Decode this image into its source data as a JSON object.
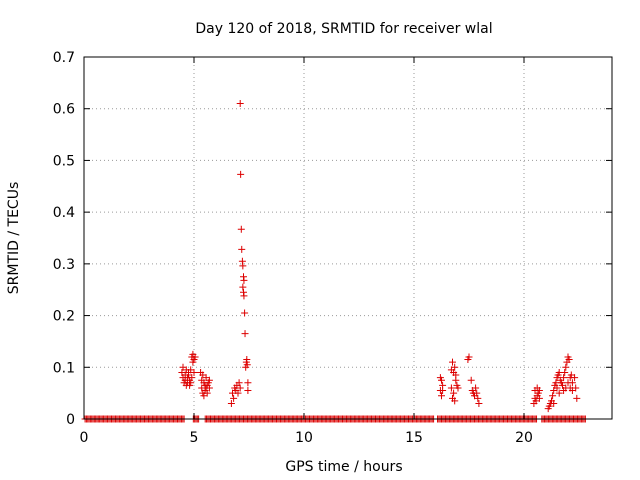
{
  "chart_data": {
    "type": "scatter",
    "title": "Day 120 of 2018, SRMTID for receiver wlal",
    "xlabel": "GPS time / hours",
    "ylabel": "SRMTID / TECUs",
    "xlim": [
      0,
      24
    ],
    "ylim": [
      0,
      0.7
    ],
    "x_ticks": [
      0,
      5,
      10,
      15,
      20
    ],
    "x_tick_labels": [
      "0",
      "5",
      "10",
      "15",
      "20"
    ],
    "y_ticks": [
      0,
      0.1,
      0.2,
      0.3,
      0.4,
      0.5,
      0.6,
      0.7
    ],
    "y_tick_labels": [
      "0",
      "0.1",
      "0.2",
      "0.3",
      "0.4",
      "0.5",
      "0.6",
      "0.7"
    ],
    "grid": true,
    "marker": "+",
    "marker_color": "#dd0000",
    "zero_baseline": {
      "x_start": 0.05,
      "x_end": 22.8,
      "y": 0,
      "gaps": [
        [
          4.6,
          4.95
        ],
        [
          5.25,
          5.45
        ],
        [
          15.95,
          16.05
        ],
        [
          20.6,
          20.75
        ]
      ]
    },
    "series": [
      {
        "name": "SRMTID",
        "points": [
          [
            4.45,
            0.09
          ],
          [
            4.5,
            0.1
          ],
          [
            4.5,
            0.08
          ],
          [
            4.55,
            0.07
          ],
          [
            4.6,
            0.085
          ],
          [
            4.6,
            0.075
          ],
          [
            4.65,
            0.095
          ],
          [
            4.65,
            0.065
          ],
          [
            4.7,
            0.07
          ],
          [
            4.7,
            0.08
          ],
          [
            4.75,
            0.09
          ],
          [
            4.75,
            0.085
          ],
          [
            4.8,
            0.075
          ],
          [
            4.8,
            0.065
          ],
          [
            4.85,
            0.095
          ],
          [
            4.85,
            0.07
          ],
          [
            4.9,
            0.12
          ],
          [
            4.9,
            0.08
          ],
          [
            4.95,
            0.11
          ],
          [
            4.95,
            0.125
          ],
          [
            5.0,
            0.115
          ],
          [
            5.0,
            0.09
          ],
          [
            5.05,
            0.12
          ],
          [
            5.3,
            0.09
          ],
          [
            5.35,
            0.075
          ],
          [
            5.35,
            0.06
          ],
          [
            5.4,
            0.085
          ],
          [
            5.4,
            0.05
          ],
          [
            5.45,
            0.07
          ],
          [
            5.45,
            0.045
          ],
          [
            5.5,
            0.065
          ],
          [
            5.5,
            0.055
          ],
          [
            5.55,
            0.08
          ],
          [
            5.55,
            0.06
          ],
          [
            5.6,
            0.065
          ],
          [
            5.6,
            0.05
          ],
          [
            5.65,
            0.07
          ],
          [
            5.7,
            0.06
          ],
          [
            5.7,
            0.075
          ],
          [
            6.7,
            0.03
          ],
          [
            6.75,
            0.05
          ],
          [
            6.8,
            0.04
          ],
          [
            6.85,
            0.06
          ],
          [
            6.9,
            0.055
          ],
          [
            6.95,
            0.065
          ],
          [
            7.0,
            0.05
          ],
          [
            7.05,
            0.07
          ],
          [
            7.1,
            0.06
          ],
          [
            7.1,
            0.61
          ],
          [
            7.12,
            0.473
          ],
          [
            7.15,
            0.367
          ],
          [
            7.17,
            0.328
          ],
          [
            7.2,
            0.305
          ],
          [
            7.22,
            0.296
          ],
          [
            7.25,
            0.275
          ],
          [
            7.27,
            0.268
          ],
          [
            7.22,
            0.255
          ],
          [
            7.25,
            0.245
          ],
          [
            7.27,
            0.238
          ],
          [
            7.3,
            0.205
          ],
          [
            7.32,
            0.165
          ],
          [
            7.35,
            0.1
          ],
          [
            7.38,
            0.11
          ],
          [
            7.4,
            0.115
          ],
          [
            7.42,
            0.105
          ],
          [
            7.45,
            0.07
          ],
          [
            7.45,
            0.055
          ],
          [
            16.2,
            0.08
          ],
          [
            16.2,
            0.055
          ],
          [
            16.25,
            0.075
          ],
          [
            16.25,
            0.045
          ],
          [
            16.3,
            0.065
          ],
          [
            16.3,
            0.055
          ],
          [
            16.7,
            0.095
          ],
          [
            16.7,
            0.06
          ],
          [
            16.75,
            0.11
          ],
          [
            16.75,
            0.04
          ],
          [
            16.8,
            0.09
          ],
          [
            16.8,
            0.05
          ],
          [
            16.85,
            0.1
          ],
          [
            16.85,
            0.035
          ],
          [
            16.9,
            0.075
          ],
          [
            16.9,
            0.085
          ],
          [
            16.95,
            0.065
          ],
          [
            17.0,
            0.06
          ],
          [
            17.45,
            0.115
          ],
          [
            17.5,
            0.12
          ],
          [
            17.6,
            0.075
          ],
          [
            17.65,
            0.055
          ],
          [
            17.7,
            0.05
          ],
          [
            17.75,
            0.045
          ],
          [
            17.8,
            0.06
          ],
          [
            17.85,
            0.05
          ],
          [
            17.9,
            0.04
          ],
          [
            17.95,
            0.03
          ],
          [
            20.45,
            0.03
          ],
          [
            20.5,
            0.04
          ],
          [
            20.5,
            0.055
          ],
          [
            20.55,
            0.035
          ],
          [
            20.6,
            0.045
          ],
          [
            20.6,
            0.06
          ],
          [
            20.65,
            0.05
          ],
          [
            20.7,
            0.055
          ],
          [
            20.7,
            0.04
          ],
          [
            21.1,
            0.02
          ],
          [
            21.15,
            0.025
          ],
          [
            21.2,
            0.03
          ],
          [
            21.25,
            0.035
          ],
          [
            21.3,
            0.045
          ],
          [
            21.35,
            0.055
          ],
          [
            21.35,
            0.03
          ],
          [
            21.4,
            0.065
          ],
          [
            21.45,
            0.07
          ],
          [
            21.5,
            0.08
          ],
          [
            21.5,
            0.06
          ],
          [
            21.55,
            0.085
          ],
          [
            21.6,
            0.09
          ],
          [
            21.6,
            0.05
          ],
          [
            21.65,
            0.075
          ],
          [
            21.7,
            0.07
          ],
          [
            21.75,
            0.065
          ],
          [
            21.8,
            0.08
          ],
          [
            21.8,
            0.055
          ],
          [
            21.85,
            0.09
          ],
          [
            21.9,
            0.1
          ],
          [
            21.9,
            0.06
          ],
          [
            21.95,
            0.11
          ],
          [
            22.0,
            0.12
          ],
          [
            22.0,
            0.07
          ],
          [
            22.05,
            0.115
          ],
          [
            22.1,
            0.08
          ],
          [
            22.1,
            0.06
          ],
          [
            22.15,
            0.085
          ],
          [
            22.2,
            0.07
          ],
          [
            22.2,
            0.055
          ],
          [
            22.3,
            0.08
          ],
          [
            22.35,
            0.06
          ],
          [
            22.4,
            0.04
          ]
        ]
      }
    ]
  }
}
